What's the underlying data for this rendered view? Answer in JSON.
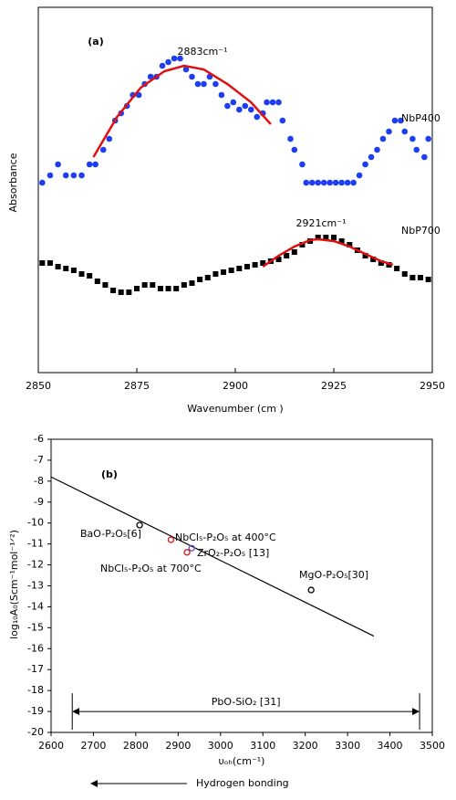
{
  "chart_data": [
    {
      "type": "scatter",
      "title": "(a)",
      "xlabel": "Wavenumber (cm )",
      "ylabel": "Absorbance",
      "xlim": [
        2850,
        2950
      ],
      "xticks": [
        2850,
        2875,
        2900,
        2925,
        2950
      ],
      "ylim": [
        0,
        100
      ],
      "series": [
        {
          "name": "NbP400",
          "color": "#1e3ef5",
          "marker": "circle",
          "x": [
            2851,
            2853,
            2855,
            2857,
            2859,
            2861,
            2863,
            2864.5,
            2866.5,
            2868,
            2869.5,
            2871,
            2872.5,
            2874,
            2875.5,
            2877,
            2878.5,
            2880,
            2881.5,
            2883,
            2884.5,
            2886,
            2887.5,
            2889,
            2890.5,
            2892,
            2893.5,
            2895,
            2896.5,
            2898,
            2899.5,
            2901,
            2902.5,
            2904,
            2905.5,
            2907,
            2908,
            2909.5,
            2911,
            2912,
            2914,
            2915,
            2917,
            2918,
            2919.5,
            2921,
            2922.5,
            2924,
            2925.5,
            2927,
            2928.5,
            2930,
            2931.5,
            2933,
            2934.5,
            2936,
            2937.5,
            2939,
            2940.5,
            2942,
            2943,
            2945,
            2946,
            2948,
            2949
          ],
          "values": [
            52,
            54,
            57,
            54,
            54,
            54,
            57,
            57,
            61,
            64,
            69,
            71,
            73,
            76,
            76,
            79,
            81,
            81,
            84,
            85,
            86,
            86,
            83,
            81,
            79,
            79,
            81,
            79,
            76,
            73,
            74,
            72,
            73,
            72,
            70,
            71,
            74,
            74,
            74,
            69,
            64,
            61,
            57,
            52,
            52,
            52,
            52,
            52,
            52,
            52,
            52,
            52,
            54,
            57,
            59,
            61,
            64,
            66,
            69,
            69,
            66,
            64,
            61,
            59,
            64
          ]
        },
        {
          "name": "NbP700",
          "color": "#000000",
          "marker": "square",
          "x": [
            2851,
            2853,
            2855,
            2857,
            2859,
            2861,
            2863,
            2865,
            2867,
            2869,
            2871,
            2873,
            2875,
            2877,
            2879,
            2881,
            2883,
            2885,
            2887,
            2889,
            2891,
            2893,
            2895,
            2897,
            2899,
            2901,
            2903,
            2905,
            2907,
            2909,
            2911,
            2913,
            2915,
            2917,
            2919,
            2921,
            2923,
            2925,
            2927,
            2929,
            2931,
            2933,
            2935,
            2937,
            2939,
            2941,
            2943,
            2945,
            2947,
            2949
          ],
          "values": [
            30,
            30,
            29,
            28.5,
            28,
            27,
            26.5,
            25,
            24,
            22.5,
            22,
            22,
            23,
            24,
            24,
            23,
            23,
            23,
            24,
            24.5,
            25.5,
            26,
            27,
            27.5,
            28,
            28.5,
            29,
            29.5,
            30,
            30.5,
            31,
            32,
            33,
            35,
            36,
            37,
            37,
            37,
            36,
            35,
            33.5,
            32,
            31,
            30,
            29.5,
            28.5,
            27,
            26,
            26,
            25.5
          ]
        },
        {
          "color": "#e01010",
          "marker": "line",
          "label": "2883cm⁻¹",
          "x": [
            2864,
            2870,
            2876,
            2882,
            2887,
            2892,
            2898,
            2904,
            2909
          ],
          "values": [
            59,
            70,
            78,
            82.5,
            84,
            83,
            79,
            74,
            68
          ]
        },
        {
          "color": "#e01010",
          "marker": "line",
          "label": "2921cm⁻¹",
          "x": [
            2907,
            2911,
            2915,
            2919,
            2921,
            2925,
            2929,
            2933,
            2937,
            2940
          ],
          "values": [
            29,
            32,
            34.5,
            36.3,
            36.5,
            36,
            34.5,
            32.5,
            30.5,
            29.5
          ]
        }
      ]
    },
    {
      "type": "scatter",
      "title": "(b)",
      "xlabel": "υₒₕ(cm⁻¹)",
      "ylabel": "log₁₀A₀(Scm⁻¹mol⁻¹ᐟ²)",
      "xlim": [
        2600,
        3500
      ],
      "xticks": [
        2600,
        2700,
        2800,
        2900,
        3000,
        3100,
        3200,
        3300,
        3400,
        3500
      ],
      "ylim": [
        -20,
        -6
      ],
      "yticks": [
        -6,
        -7,
        -8,
        -9,
        -10,
        -11,
        -12,
        -13,
        -14,
        -15,
        -16,
        -17,
        -18,
        -19,
        -20
      ],
      "series": [
        {
          "color": "#000000",
          "marker": "line",
          "x": [
            2600,
            3362
          ],
          "values": [
            -7.8,
            -15.4
          ]
        },
        {
          "color": "#000000",
          "marker": "circle",
          "label": "BaO-P₂O₅[6]",
          "x": [
            2809
          ],
          "values": [
            -10.1
          ]
        },
        {
          "color": "#e01010",
          "marker": "circle",
          "label": "NbCl₅-P₂O₅ at 400°C",
          "x": [
            2883
          ],
          "values": [
            -10.8
          ]
        },
        {
          "color": "#e01010",
          "marker": "circle",
          "label": "NbCl₅-P₂O₅ at 700°C",
          "x": [
            2921
          ],
          "values": [
            -11.4
          ]
        },
        {
          "color": "#6050c0",
          "marker": "circle",
          "label": "ZrO₂-P₂O₅ [13]",
          "x": [
            2932
          ],
          "values": [
            -11.2
          ]
        },
        {
          "color": "#000000",
          "marker": "circle",
          "label": "MgO-P₂O₅[30]",
          "x": [
            3214
          ],
          "values": [
            -13.2
          ]
        }
      ],
      "range": {
        "label": "PbO-SiO₂ [31]",
        "x": [
          2650,
          3470
        ],
        "y": -19
      },
      "footnote": "Hydrogen bonding"
    }
  ]
}
